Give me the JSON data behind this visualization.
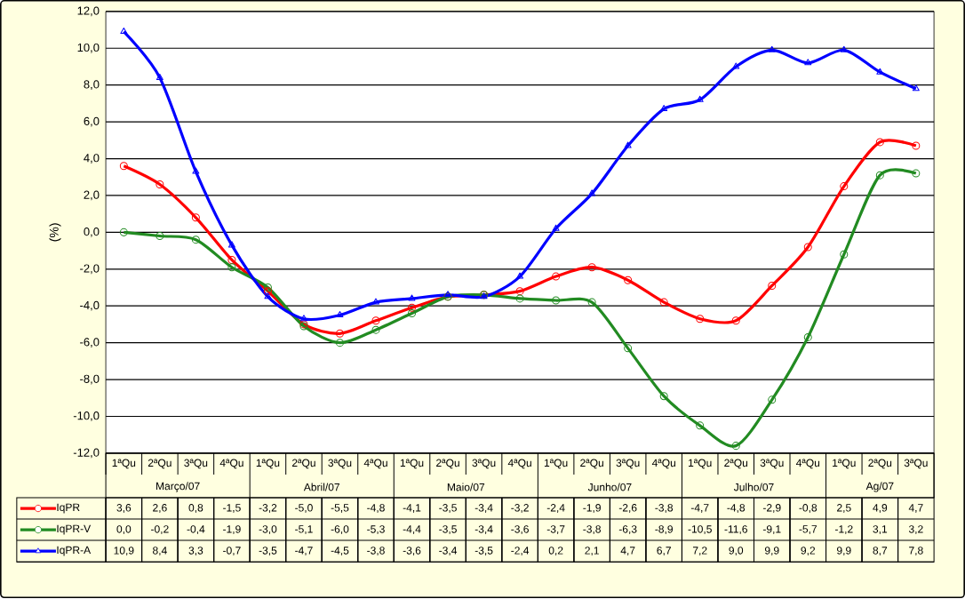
{
  "chart_data": {
    "type": "line",
    "ylabel": "(%)",
    "categories": [
      "1ªQu",
      "2ªQu",
      "3ªQu",
      "4ªQu",
      "1ªQu",
      "2ªQu",
      "3ªQu",
      "4ªQu",
      "1ªQu",
      "2ªQu",
      "3ªQu",
      "4ªQu",
      "1ªQu",
      "2ªQu",
      "3ªQu",
      "4ªQu",
      "1ªQu",
      "2ªQu",
      "3ªQu",
      "4ªQu",
      "1ªQu",
      "2ªQu",
      "3ªQu"
    ],
    "annotations": [
      "Março/07",
      "Abril/07",
      "Maio/07",
      "Junho/07",
      "Julho/07",
      "Ag/07"
    ],
    "series": [
      {
        "name": "IqPR",
        "color": "#ff0000",
        "marker": "circle",
        "values": [
          3.6,
          2.6,
          0.8,
          -1.5,
          -3.2,
          -5.0,
          -5.5,
          -4.8,
          -4.1,
          -3.5,
          -3.4,
          -3.2,
          -2.4,
          -1.9,
          -2.6,
          -3.8,
          -4.7,
          -4.8,
          -2.9,
          -0.8,
          2.5,
          4.9,
          4.7
        ],
        "value_labels": [
          "3,6",
          "2,6",
          "0,8",
          "-1,5",
          "-3,2",
          "-5,0",
          "-5,5",
          "-4,8",
          "-4,1",
          "-3,5",
          "-3,4",
          "-3,2",
          "-2,4",
          "-1,9",
          "-2,6",
          "-3,8",
          "-4,7",
          "-4,8",
          "-2,9",
          "-0,8",
          "2,5",
          "4,9",
          "4,7"
        ]
      },
      {
        "name": "IqPR-V",
        "color": "#228b22",
        "marker": "circle",
        "values": [
          0.0,
          -0.2,
          -0.4,
          -1.9,
          -3.0,
          -5.1,
          -6.0,
          -5.3,
          -4.4,
          -3.5,
          -3.4,
          -3.6,
          -3.7,
          -3.8,
          -6.3,
          -8.9,
          -10.5,
          -11.6,
          -9.1,
          -5.7,
          -1.2,
          3.1,
          3.2
        ],
        "value_labels": [
          "0,0",
          "-0,2",
          "-0,4",
          "-1,9",
          "-3,0",
          "-5,1",
          "-6,0",
          "-5,3",
          "-4,4",
          "-3,5",
          "-3,4",
          "-3,6",
          "-3,7",
          "-3,8",
          "-6,3",
          "-8,9",
          "-10,5",
          "-11,6",
          "-9,1",
          "-5,7",
          "-1,2",
          "3,1",
          "3,2"
        ]
      },
      {
        "name": "IqPR-A",
        "color": "#0000ff",
        "marker": "triangle",
        "values": [
          10.9,
          8.4,
          3.3,
          -0.7,
          -3.5,
          -4.7,
          -4.5,
          -3.8,
          -3.6,
          -3.4,
          -3.5,
          -2.4,
          0.2,
          2.1,
          4.7,
          6.7,
          7.2,
          9.0,
          9.9,
          9.2,
          9.9,
          8.7,
          7.8
        ],
        "value_labels": [
          "10,9",
          "8,4",
          "3,3",
          "-0,7",
          "-3,5",
          "-4,7",
          "-4,5",
          "-3,8",
          "-3,6",
          "-3,4",
          "-3,5",
          "-2,4",
          "0,2",
          "2,1",
          "4,7",
          "6,7",
          "7,2",
          "9,0",
          "9,9",
          "9,2",
          "9,9",
          "8,7",
          "7,8"
        ]
      }
    ],
    "ylim": [
      -12,
      12
    ],
    "yticks": [
      {
        "value": -12,
        "label": "-12,0"
      },
      {
        "value": -10,
        "label": "-10,0"
      },
      {
        "value": -8,
        "label": "-8,0"
      },
      {
        "value": -6,
        "label": "-6,0"
      },
      {
        "value": -4,
        "label": "-4,0"
      },
      {
        "value": -2,
        "label": "-2,0"
      },
      {
        "value": 0,
        "label": "0,0"
      },
      {
        "value": 2,
        "label": "2,0"
      },
      {
        "value": 4,
        "label": "4,0"
      },
      {
        "value": 6,
        "label": "6,0"
      },
      {
        "value": 8,
        "label": "8,0"
      },
      {
        "value": 10,
        "label": "10,0"
      },
      {
        "value": 12,
        "label": "12,0"
      }
    ],
    "grid": "y",
    "legend": "bottom left",
    "line_style": "solid"
  }
}
